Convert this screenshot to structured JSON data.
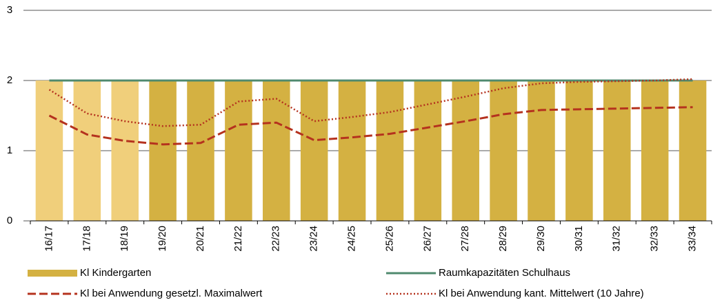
{
  "chart_data": {
    "type": "bar",
    "categories": [
      "16/17",
      "17/18",
      "18/19",
      "19/20",
      "20/21",
      "21/22",
      "22/23",
      "23/24",
      "24/25",
      "25/26",
      "26/27",
      "27/28",
      "28/29",
      "29/30",
      "30/31",
      "31/32",
      "32/33",
      "33/34"
    ],
    "series": [
      {
        "name": "Kl Kindergarten",
        "type": "bar",
        "color": "#d4b142",
        "colors": [
          "#f0cf7b",
          "#f0cf7b",
          "#f0cf7b",
          "#d4b142",
          "#d4b142",
          "#d4b142",
          "#d4b142",
          "#d4b142",
          "#d4b142",
          "#d4b142",
          "#d4b142",
          "#d4b142",
          "#d4b142",
          "#d4b142",
          "#d4b142",
          "#d4b142",
          "#d4b142",
          "#d4b142"
        ],
        "values": [
          2,
          2,
          2,
          2,
          2,
          2,
          2,
          2,
          2,
          2,
          2,
          2,
          2,
          2,
          2,
          2,
          2,
          2
        ]
      },
      {
        "name": "Raumkapazitäten Schulhaus",
        "type": "line",
        "color": "#4f8a6e",
        "dash": "solid",
        "values": [
          2,
          2,
          2,
          2,
          2,
          2,
          2,
          2,
          2,
          2,
          2,
          2,
          2,
          2,
          2,
          2,
          2,
          2
        ]
      },
      {
        "name": "Kl bei Anwendung gesetzl. Maximalwert",
        "type": "line",
        "color": "#b5321e",
        "dash": "dashed",
        "values": [
          1.5,
          1.23,
          1.14,
          1.09,
          1.11,
          1.37,
          1.4,
          1.15,
          1.19,
          1.24,
          1.33,
          1.42,
          1.52,
          1.58,
          1.59,
          1.6,
          1.61,
          1.62
        ]
      },
      {
        "name": "Kl bei Anwendung kant. Mittelwert (10 Jahre)",
        "type": "line",
        "color": "#b5321e",
        "dash": "dotted",
        "values": [
          1.87,
          1.53,
          1.42,
          1.35,
          1.37,
          1.7,
          1.74,
          1.42,
          1.48,
          1.55,
          1.66,
          1.77,
          1.89,
          1.96,
          1.98,
          1.99,
          2.0,
          2.02
        ]
      }
    ],
    "ylim": [
      0,
      3
    ],
    "yticks": [
      0,
      1,
      2,
      3
    ],
    "grid": true
  }
}
